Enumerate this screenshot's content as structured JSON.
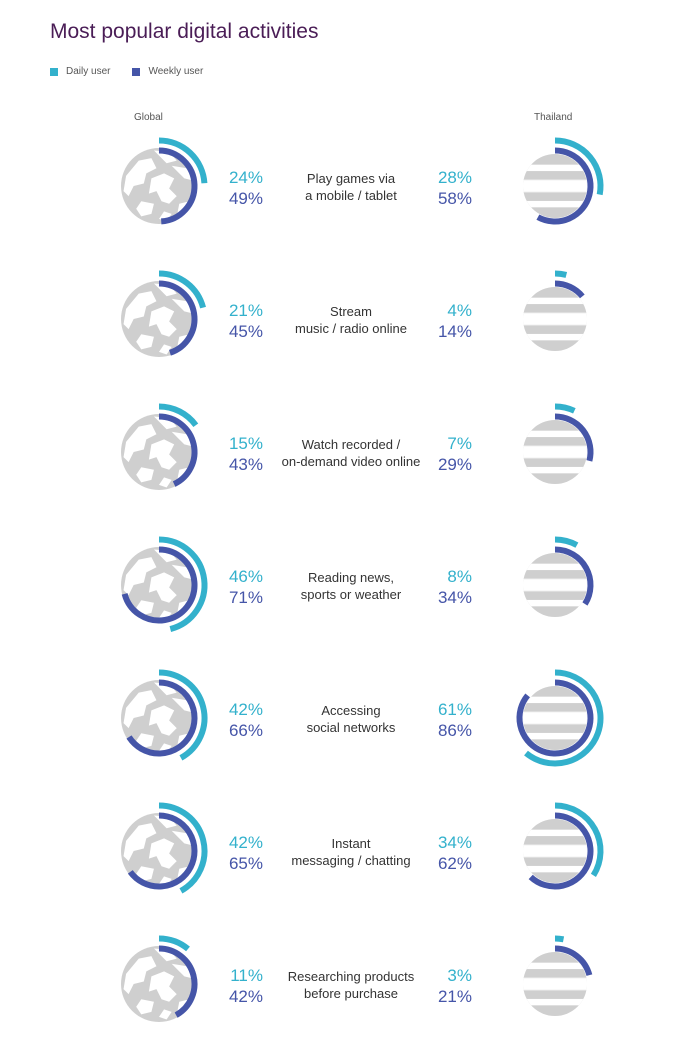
{
  "title": "Most popular digital activities",
  "legend": {
    "daily_label": "Daily user",
    "weekly_label": "Weekly user"
  },
  "columns": {
    "left": "Global",
    "right": "Thailand"
  },
  "colors": {
    "daily": "#33b1cc",
    "weekly": "#4555a8",
    "globe": "#cfcfcf"
  },
  "icons": {
    "global": "globe-icon",
    "thailand": "thailand-flag-icon"
  },
  "chart_data": {
    "type": "radial-bar",
    "series_names": [
      "Daily user",
      "Weekly user"
    ],
    "groups": [
      "Global",
      "Thailand"
    ],
    "activities": [
      {
        "label": [
          "Play games via",
          "a mobile / tablet"
        ],
        "global": {
          "daily": 24,
          "weekly": 49
        },
        "thailand": {
          "daily": 28,
          "weekly": 58
        }
      },
      {
        "label": [
          "Stream",
          "music / radio online"
        ],
        "global": {
          "daily": 21,
          "weekly": 45
        },
        "thailand": {
          "daily": 4,
          "weekly": 14
        }
      },
      {
        "label": [
          "Watch recorded /",
          "on-demand video online"
        ],
        "global": {
          "daily": 15,
          "weekly": 43
        },
        "thailand": {
          "daily": 7,
          "weekly": 29
        }
      },
      {
        "label": [
          "Reading news,",
          "sports or weather"
        ],
        "global": {
          "daily": 46,
          "weekly": 71
        },
        "thailand": {
          "daily": 8,
          "weekly": 34
        }
      },
      {
        "label": [
          "Accessing",
          "social networks"
        ],
        "global": {
          "daily": 42,
          "weekly": 66
        },
        "thailand": {
          "daily": 61,
          "weekly": 86
        }
      },
      {
        "label": [
          "Instant",
          "messaging / chatting"
        ],
        "global": {
          "daily": 42,
          "weekly": 65
        },
        "thailand": {
          "daily": 34,
          "weekly": 62
        }
      },
      {
        "label": [
          "Researching products",
          "before purchase"
        ],
        "global": {
          "daily": 11,
          "weekly": 42
        },
        "thailand": {
          "daily": 3,
          "weekly": 21
        }
      }
    ]
  }
}
